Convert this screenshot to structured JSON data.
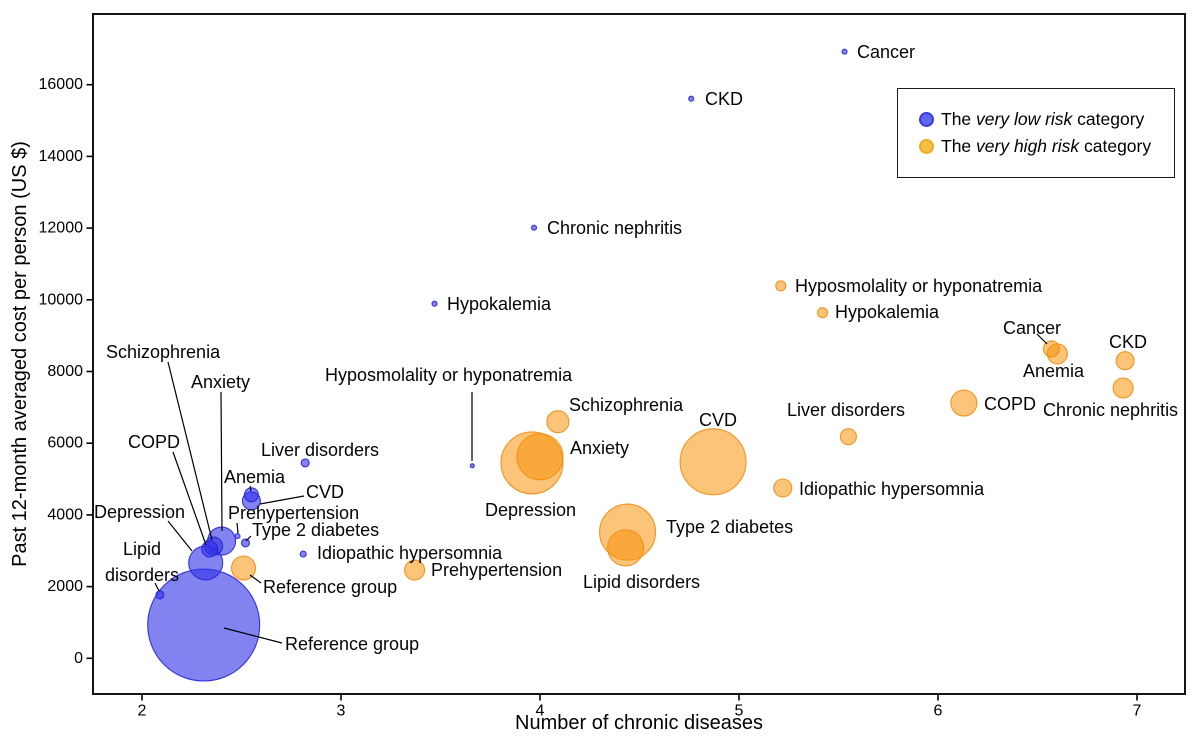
{
  "chart_data": {
    "type": "scatter",
    "title": "",
    "xlabel": "Number of chronic diseases",
    "ylabel": "Past 12-month averaged cost per person (US $)",
    "x_ticks": [
      "2",
      "3",
      "4",
      "5",
      "6",
      "7"
    ],
    "y_ticks": [
      "0",
      "2000",
      "4000",
      "6000",
      "8000",
      "10000",
      "12000",
      "14000",
      "16000"
    ],
    "xlim": [
      1.75,
      7.26
    ],
    "ylim": [
      -1010,
      17980
    ],
    "grid": false,
    "legend_position": "top-right",
    "legend": [
      {
        "prefix": "The ",
        "em": "very low risk",
        "suffix": " category",
        "dot_color": "#6066EF",
        "dot_border": "#3A3ADF"
      },
      {
        "prefix": "The ",
        "em": "very high risk",
        "suffix": " category",
        "dot_color": "#F8BE40",
        "dot_border": "#ECAC25"
      }
    ],
    "series": [
      {
        "name": "The very low risk category",
        "color": "rgba(47,47,232,0.60)",
        "stroke": "#2626D8",
        "points": [
          {
            "label": "Reference group",
            "x": 2.31,
            "y": 930,
            "r": 56
          },
          {
            "label": "Depression",
            "x": 2.32,
            "y": 2660,
            "r": 17
          },
          {
            "label": "Anxiety",
            "x": 2.4,
            "y": 3270,
            "r": 14
          },
          {
            "label": "Schizophrenia",
            "x": 2.36,
            "y": 3130,
            "r": 9
          },
          {
            "label": "COPD",
            "x": 2.34,
            "y": 3050,
            "r": 8
          },
          {
            "label": "Lipid disorders",
            "x": 2.09,
            "y": 1770,
            "r": 4
          },
          {
            "label": "Prehypertension",
            "x": 2.48,
            "y": 3410,
            "r": 2.5
          },
          {
            "label": "Type 2 diabetes",
            "x": 2.52,
            "y": 3220,
            "r": 4
          },
          {
            "label": "Anemia",
            "x": 2.55,
            "y": 4560,
            "r": 7
          },
          {
            "label": "CVD",
            "x": 2.55,
            "y": 4390,
            "r": 9
          },
          {
            "label": "Liver disorders",
            "x": 2.82,
            "y": 5450,
            "r": 4
          },
          {
            "label": "Idiopathic hypersomnia",
            "x": 2.81,
            "y": 2910,
            "r": 3
          },
          {
            "label": "Hyposmolality or hyponatremia",
            "x": 3.66,
            "y": 5370,
            "r": 2
          },
          {
            "label": "Hypokalemia",
            "x": 3.47,
            "y": 9890,
            "r": 2.5
          },
          {
            "label": "Chronic nephritis",
            "x": 3.97,
            "y": 12010,
            "r": 2.5
          },
          {
            "label": "CKD",
            "x": 4.76,
            "y": 15610,
            "r": 2.5
          },
          {
            "label": "Cancer",
            "x": 5.53,
            "y": 16920,
            "r": 2.5
          }
        ]
      },
      {
        "name": "The very high risk category",
        "color": "rgba(247,147,10,0.55)",
        "stroke": "#F28C11",
        "points": [
          {
            "label": "Reference group",
            "x": 2.51,
            "y": 2520,
            "r": 12
          },
          {
            "label": "Prehypertension",
            "x": 3.37,
            "y": 2460,
            "r": 10
          },
          {
            "label": "Depression",
            "x": 3.96,
            "y": 5450,
            "r": 31
          },
          {
            "label": "Anxiety",
            "x": 4.0,
            "y": 5620,
            "r": 23
          },
          {
            "label": "Schizophrenia",
            "x": 4.09,
            "y": 6600,
            "r": 11
          },
          {
            "label": "Type 2 diabetes",
            "x": 4.44,
            "y": 3520,
            "r": 28
          },
          {
            "label": "Lipid disorders",
            "x": 4.43,
            "y": 3080,
            "r": 18
          },
          {
            "label": "CVD",
            "x": 4.87,
            "y": 5480,
            "r": 33
          },
          {
            "label": "Idiopathic hypersomnia",
            "x": 5.22,
            "y": 4750,
            "r": 9
          },
          {
            "label": "Hyposmolality or hyponatremia",
            "x": 5.21,
            "y": 10390,
            "r": 5
          },
          {
            "label": "Hypokalemia",
            "x": 5.42,
            "y": 9640,
            "r": 5
          },
          {
            "label": "Liver disorders",
            "x": 5.55,
            "y": 6180,
            "r": 8
          },
          {
            "label": "COPD",
            "x": 6.13,
            "y": 7120,
            "r": 13
          },
          {
            "label": "Cancer",
            "x": 6.57,
            "y": 8630,
            "r": 8
          },
          {
            "label": "Anemia",
            "x": 6.6,
            "y": 8490,
            "r": 10
          },
          {
            "label": "CKD",
            "x": 6.94,
            "y": 8300,
            "r": 9
          },
          {
            "label": "Chronic nephritis",
            "x": 6.93,
            "y": 7540,
            "r": 10
          }
        ]
      }
    ]
  }
}
